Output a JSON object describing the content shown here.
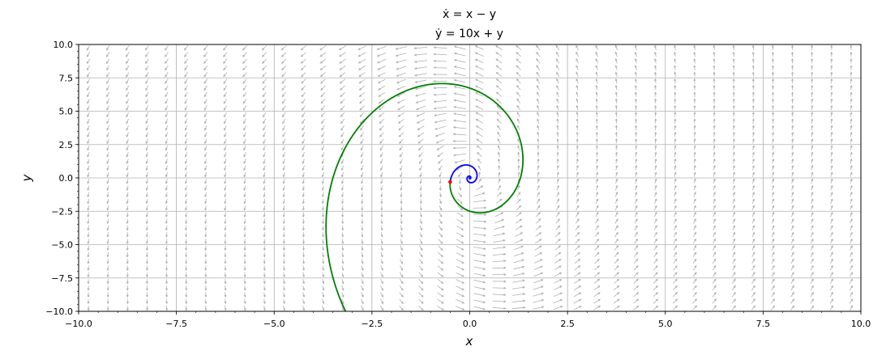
{
  "chart_data": {
    "type": "phase_portrait",
    "title_lines": [
      "ẋ = x − y",
      "ẏ = 10x + y"
    ],
    "system": {
      "dx": [
        1,
        -1
      ],
      "dy": [
        10,
        1
      ]
    },
    "xlabel": "x",
    "ylabel": "y",
    "xlim": [
      -10,
      10
    ],
    "ylim": [
      -10,
      10
    ],
    "xticks": [
      -10,
      -7.5,
      -5,
      -2.5,
      0,
      2.5,
      5,
      7.5,
      10
    ],
    "yticks": [
      -10,
      -7.5,
      -5,
      -2.5,
      0,
      2.5,
      5,
      7.5,
      10
    ],
    "xtick_labels": [
      "−10.0",
      "−7.5",
      "−5.0",
      "−2.5",
      "0.0",
      "2.5",
      "5.0",
      "7.5",
      "10.0"
    ],
    "ytick_labels": [
      "−10.0",
      "−7.5",
      "−5.0",
      "−2.5",
      "0.0",
      "2.5",
      "5.0",
      "7.5",
      "10.0"
    ],
    "grid": true,
    "initial_point": [
      -0.5,
      -0.3
    ],
    "trajectories": [
      {
        "direction": "backward",
        "color": "#0000ff"
      },
      {
        "direction": "forward",
        "color": "#008000"
      }
    ],
    "colors": {
      "vector_field": "#b0b0b0",
      "grid": "#b0b0b0",
      "initial_point": "#ff0000"
    }
  }
}
